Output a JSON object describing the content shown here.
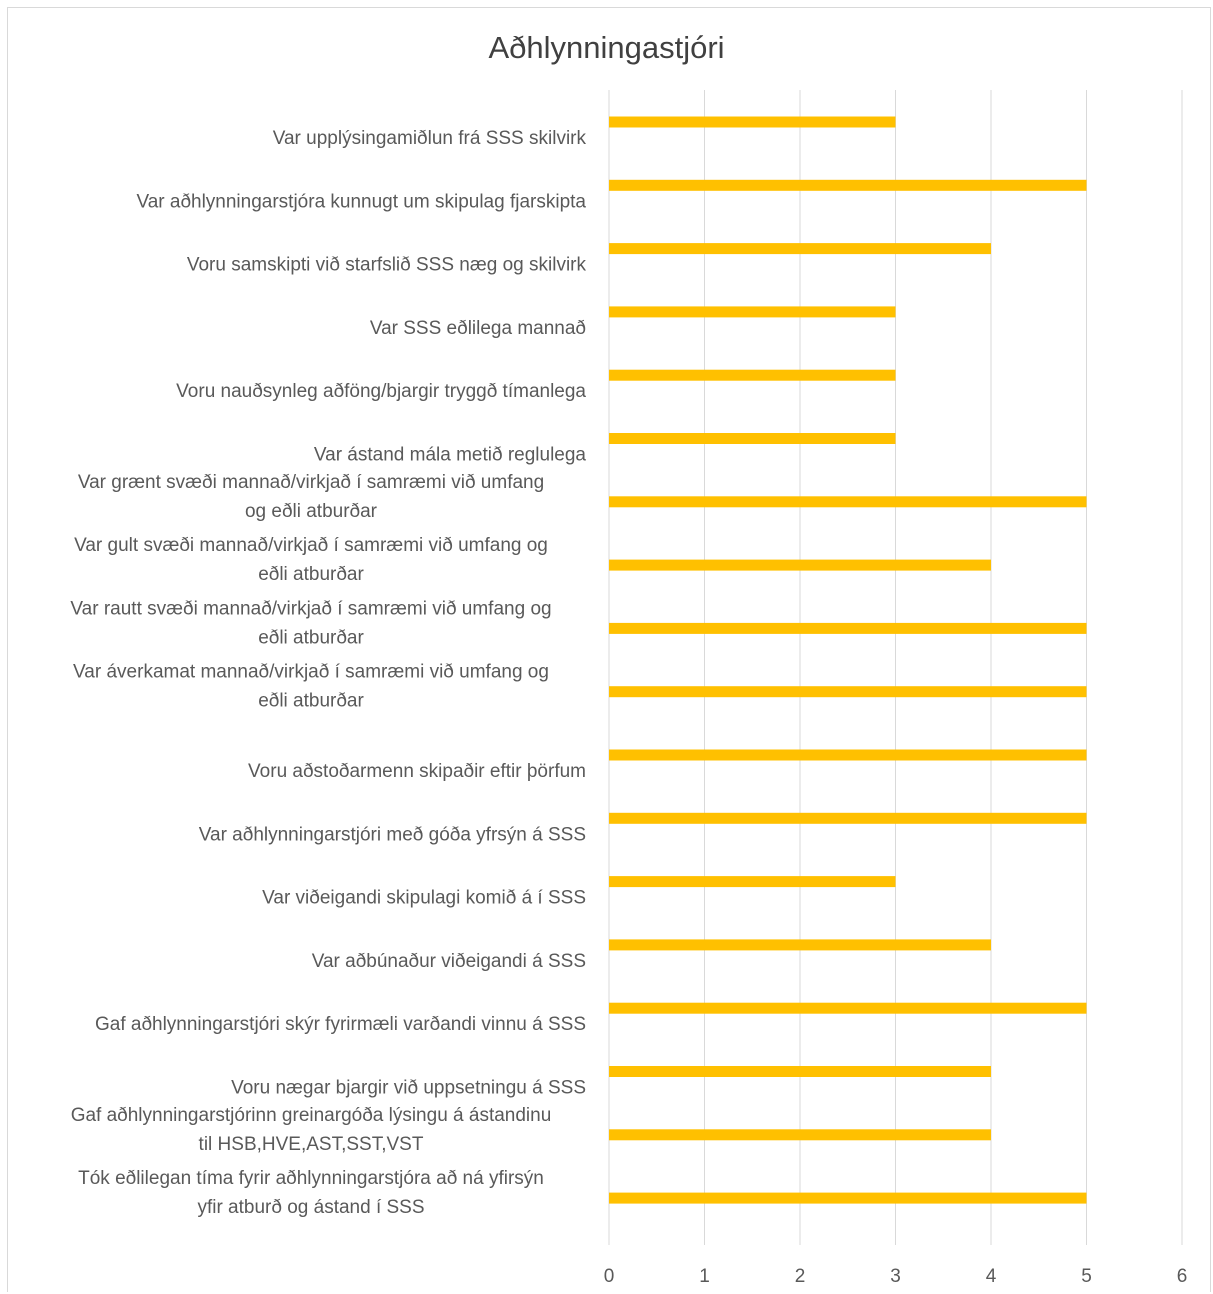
{
  "chart_data": {
    "type": "bar",
    "orientation": "horizontal",
    "title": "Aðhlynningastjóri",
    "categories": [
      "Var upplýsingamiðlun frá SSS skilvirk",
      "Var aðhlynningarstjóra kunnugt um skipulag fjarskipta",
      "Voru samskipti við starfslið SSS næg og skilvirk",
      "Var SSS eðlilega mannað",
      "Voru nauðsynleg aðföng/bjargir tryggð tímanlega",
      "Var ástand mála metið reglulega",
      "Var grænt svæði mannað/virkjað í samræmi við umfang og eðli atburðar",
      "Var gult svæði mannað/virkjað í samræmi við umfang og eðli atburðar",
      "Var rautt svæði mannað/virkjað í samræmi við umfang og eðli atburðar",
      "Var áverkamat mannað/virkjað í samræmi við umfang og eðli atburðar",
      "Voru aðstoðarmenn skipaðir eftir þörfum",
      "Var aðhlynningarstjóri með góða yfrsýn á SSS",
      "Var viðeigandi skipulagi komið á í SSS",
      "Var aðbúnaður viðeigandi á SSS",
      "Gaf aðhlynningarstjóri skýr fyrirmæli varðandi vinnu á SSS",
      "Voru nægar bjargir við uppsetningu á SSS",
      "Gaf aðhlynningarstjórinn greinargóða lýsingu á ástandinu til HSB,HVE,AST,SST,VST",
      "Tók eðlilegan tíma fyrir aðhlynningarstjóra að ná yfirsýn yfir atburð og ástand í SSS"
    ],
    "category_lines": [
      [
        "Var upplýsingamiðlun frá SSS skilvirk"
      ],
      [
        "Var aðhlynningarstjóra kunnugt um skipulag fjarskipta"
      ],
      [
        "Voru samskipti við starfslið SSS næg og skilvirk"
      ],
      [
        "Var SSS eðlilega mannað"
      ],
      [
        "Voru nauðsynleg aðföng/bjargir tryggð tímanlega"
      ],
      [
        "Var ástand mála metið reglulega"
      ],
      [
        "Var grænt svæði mannað/virkjað í samræmi við umfang",
        "og eðli atburðar"
      ],
      [
        "Var gult svæði mannað/virkjað í samræmi við umfang og",
        "eðli atburðar"
      ],
      [
        "Var rautt svæði mannað/virkjað í samræmi við umfang og",
        "eðli atburðar"
      ],
      [
        "Var áverkamat mannað/virkjað í samræmi við umfang og",
        "eðli atburðar"
      ],
      [
        "Voru aðstoðarmenn skipaðir eftir þörfum"
      ],
      [
        "Var aðhlynningarstjóri með góða yfrsýn á SSS"
      ],
      [
        "Var viðeigandi skipulagi komið á í SSS"
      ],
      [
        "Var aðbúnaður viðeigandi á SSS"
      ],
      [
        "Gaf aðhlynningarstjóri skýr fyrirmæli varðandi vinnu á SSS"
      ],
      [
        "Voru nægar bjargir við uppsetningu á SSS"
      ],
      [
        "Gaf aðhlynningarstjórinn greinargóða lýsingu á ástandinu",
        "til HSB,HVE,AST,SST,VST"
      ],
      [
        "Tók eðlilegan tíma fyrir aðhlynningarstjóra að ná yfirsýn",
        "yfir atburð og ástand í SSS"
      ]
    ],
    "values": [
      3,
      5,
      4,
      3,
      3,
      3,
      5,
      4,
      5,
      5,
      5,
      5,
      3,
      4,
      5,
      4,
      4,
      5
    ],
    "xlim": [
      0,
      6
    ],
    "xticks": [
      "0",
      "1",
      "2",
      "3",
      "4",
      "5",
      "6"
    ],
    "grid": true,
    "bar_color": "#FFC000",
    "grid_color": "#d9d9d9",
    "label_color": "#595959"
  }
}
